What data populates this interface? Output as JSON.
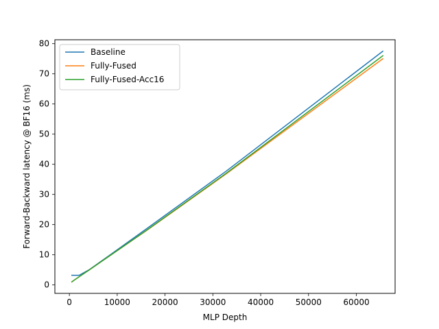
{
  "chart_data": {
    "type": "line",
    "title": "",
    "xlabel": "MLP Depth",
    "ylabel": "Forward-Backward latency @ BF16 (ms)",
    "xlim": [
      -3030,
      68100
    ],
    "ylim": [
      -2.8,
      81.3
    ],
    "xticks": [
      0,
      10000,
      20000,
      30000,
      40000,
      50000,
      60000
    ],
    "yticks": [
      0,
      10,
      20,
      30,
      40,
      50,
      60,
      70,
      80
    ],
    "grid": false,
    "legend_position": "upper-left",
    "series": [
      {
        "name": "Baseline",
        "color": "#1f77b4",
        "x": [
          512,
          1024,
          2048,
          4096,
          8192,
          16384,
          32768,
          65536
        ],
        "y": [
          3.2,
          3.2,
          3.2,
          5.0,
          9.6,
          18.9,
          37.7,
          77.5
        ]
      },
      {
        "name": "Fully-Fused",
        "color": "#ff7f0e",
        "x": [
          512,
          1024,
          2048,
          4096,
          8192,
          16384,
          32768,
          65536
        ],
        "y": [
          1.0,
          1.6,
          2.7,
          4.9,
          9.4,
          18.3,
          36.8,
          75.0
        ]
      },
      {
        "name": "Fully-Fused-Acc16",
        "color": "#2ca02c",
        "x": [
          512,
          1024,
          2048,
          4096,
          8192,
          16384,
          32768,
          65536
        ],
        "y": [
          1.0,
          1.6,
          2.7,
          4.9,
          9.4,
          18.4,
          37.0,
          76.0
        ]
      }
    ]
  }
}
